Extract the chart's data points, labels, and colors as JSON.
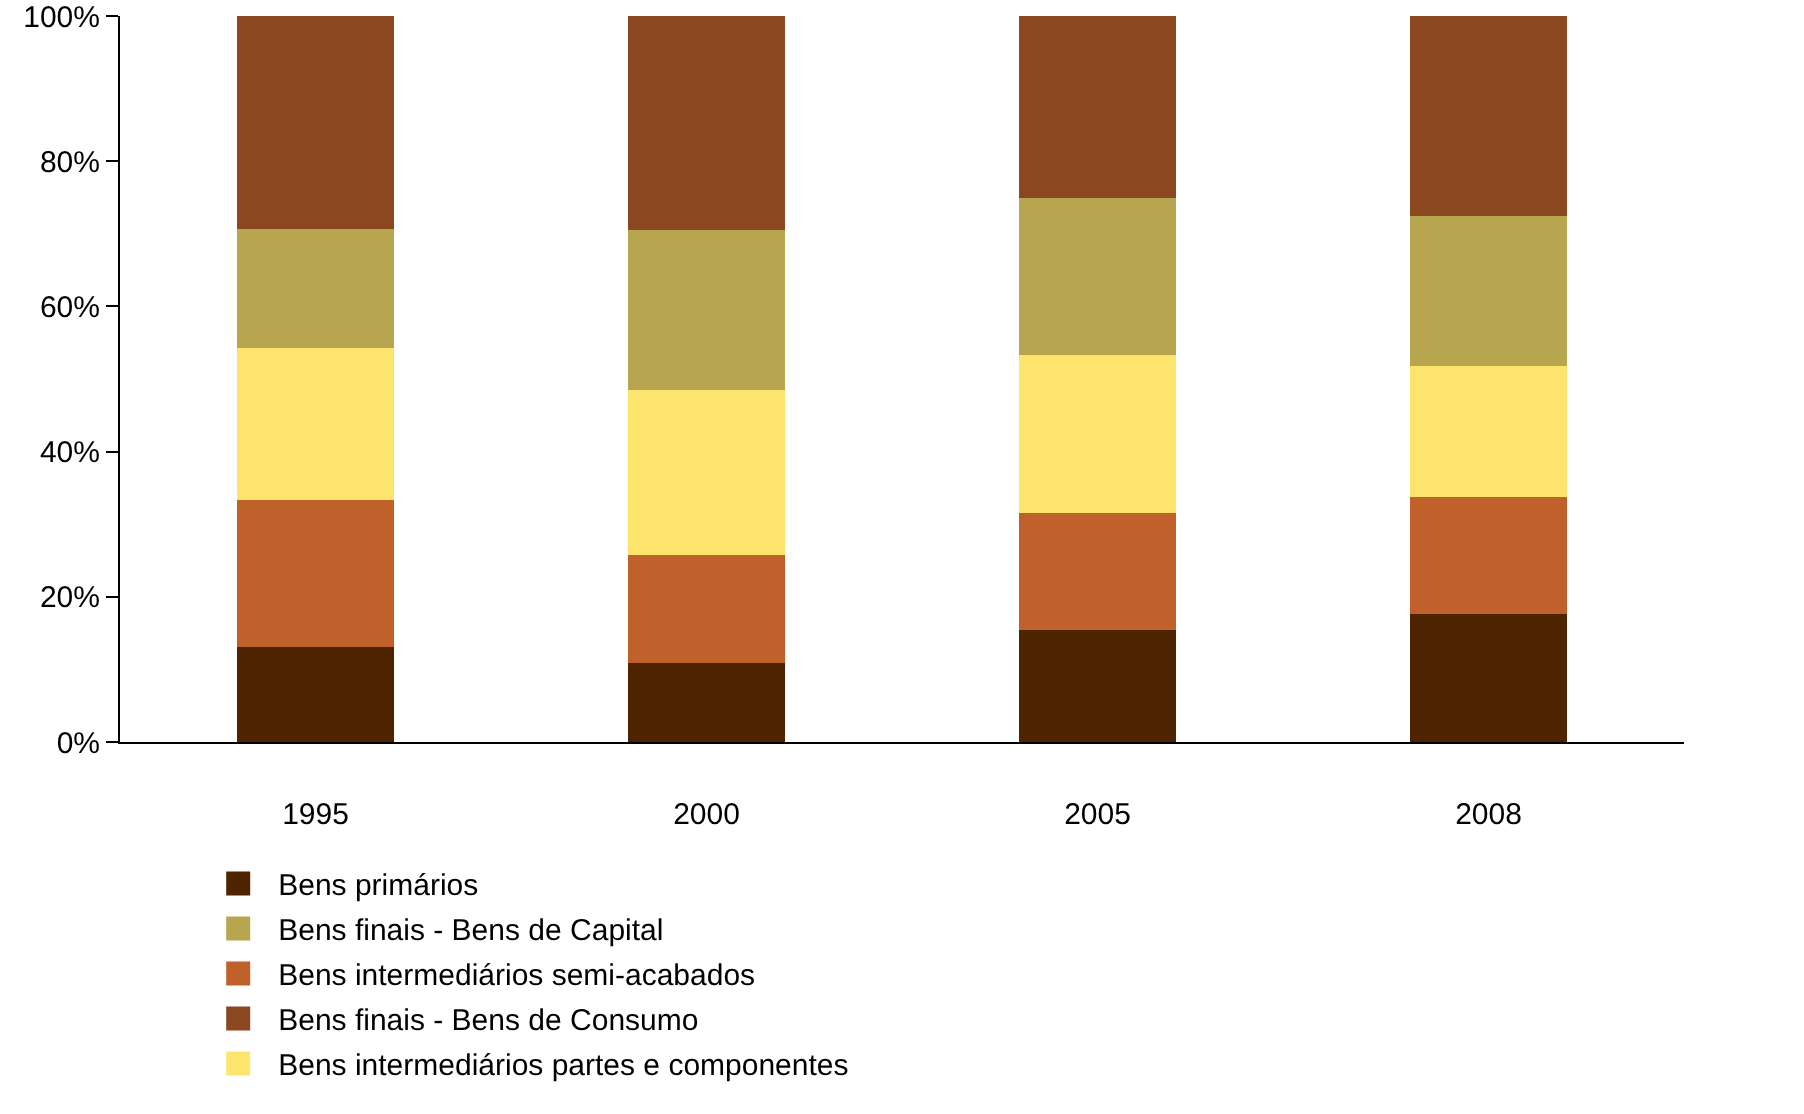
{
  "chart_data": {
    "type": "bar",
    "stacked": true,
    "categories": [
      "1995",
      "2000",
      "2005",
      "2008"
    ],
    "series": [
      {
        "name": "Bens primários",
        "color": "#4e2300",
        "values": [
          13.1,
          10.9,
          15.4,
          17.7
        ]
      },
      {
        "name": "Bens intermediários semi-acabados",
        "color": "#c0602a",
        "values": [
          20.2,
          14.9,
          16.2,
          16.1
        ]
      },
      {
        "name": "Bens intermediários partes e componentes",
        "color": "#fde56d",
        "values": [
          21.0,
          22.7,
          21.7,
          18.0
        ]
      },
      {
        "name": "Bens finais - Bens de Capital",
        "color": "#b8a550",
        "values": [
          16.4,
          22.0,
          21.7,
          20.7
        ]
      },
      {
        "name": "Bens finais - Bens de Consumo",
        "color": "#8b4720",
        "values": [
          29.3,
          29.5,
          25.0,
          27.5
        ]
      }
    ],
    "ylim": [
      0,
      100
    ],
    "yticks": [
      {
        "value": 0,
        "label": "0%"
      },
      {
        "value": 20,
        "label": "20%"
      },
      {
        "value": 40,
        "label": "40%"
      },
      {
        "value": 60,
        "label": "60%"
      },
      {
        "value": 80,
        "label": "80%"
      },
      {
        "value": 100,
        "label": "100%"
      }
    ],
    "grid": false,
    "legend": "bottom"
  }
}
